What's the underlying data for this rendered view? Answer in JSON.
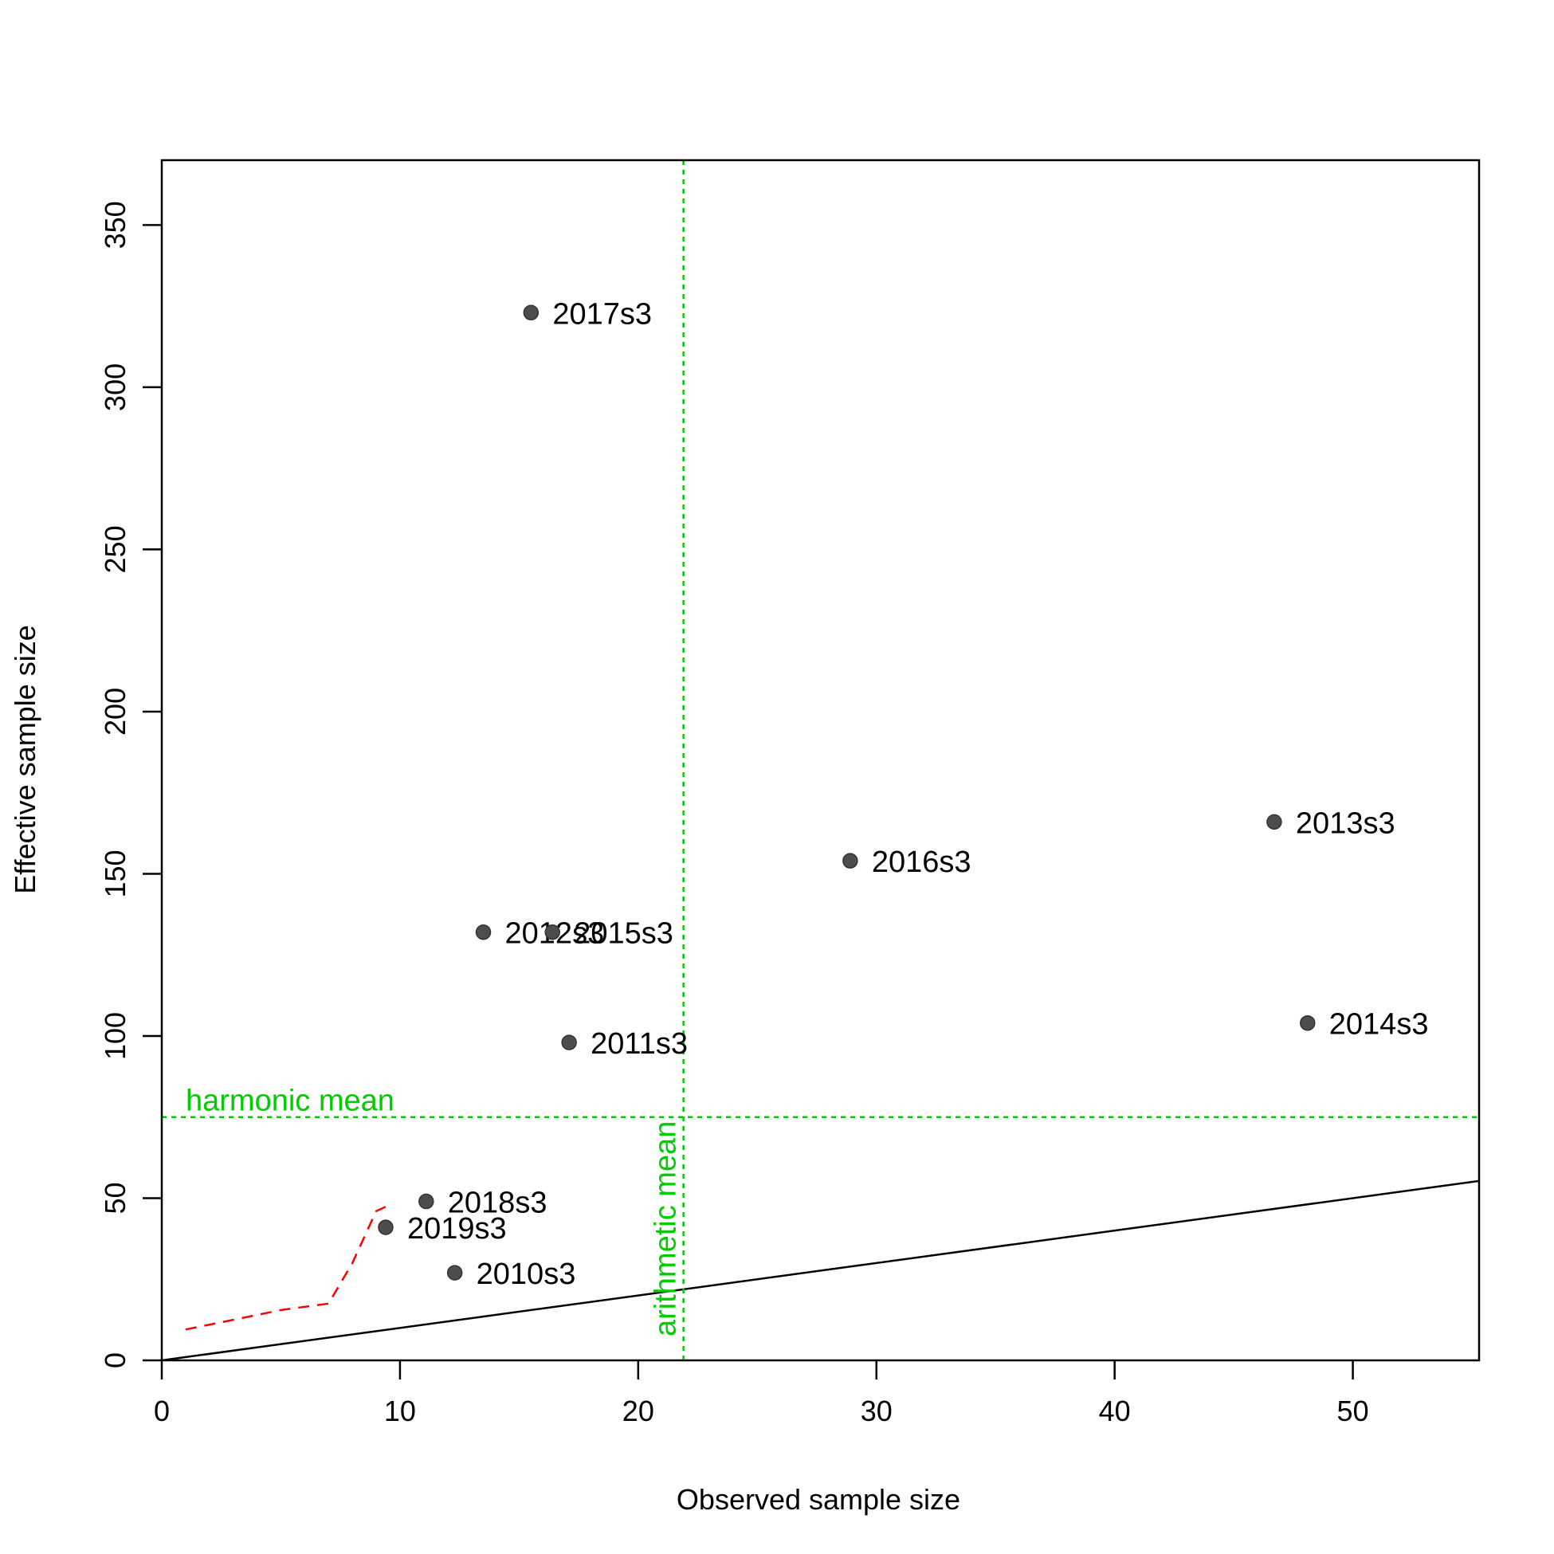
{
  "chart_data": {
    "type": "scatter",
    "xlabel": "Observed sample size",
    "ylabel": "Effective sample size",
    "xlim": [
      0,
      55.3
    ],
    "ylim": [
      0,
      370
    ],
    "x_ticks": [
      0,
      10,
      20,
      30,
      40,
      50
    ],
    "y_ticks": [
      0,
      50,
      100,
      150,
      200,
      250,
      300,
      350
    ],
    "grid": false,
    "points": [
      {
        "label": "2010s3",
        "x": 12.3,
        "y": 27
      },
      {
        "label": "2011s3",
        "x": 17.1,
        "y": 98
      },
      {
        "label": "2012s3",
        "x": 13.5,
        "y": 132
      },
      {
        "label": "2013s3",
        "x": 46.7,
        "y": 166
      },
      {
        "label": "2014s3",
        "x": 48.1,
        "y": 104
      },
      {
        "label": "2015s3",
        "x": 16.4,
        "y": 132
      },
      {
        "label": "2016s3",
        "x": 28.9,
        "y": 154
      },
      {
        "label": "2017s3",
        "x": 15.5,
        "y": 323
      },
      {
        "label": "2018s3",
        "x": 11.1,
        "y": 49
      },
      {
        "label": "2019s3",
        "x": 9.4,
        "y": 41
      }
    ],
    "one_to_one_line": {
      "x": [
        0,
        55.3
      ],
      "y": [
        0,
        55.3
      ],
      "color": "#000000"
    },
    "smoother": {
      "x": [
        1,
        3,
        5,
        7,
        8,
        9,
        9.6
      ],
      "y": [
        9.5,
        12.5,
        15.5,
        17.5,
        30,
        46,
        48
      ],
      "color": "#ff0000",
      "style": "dashed"
    },
    "harmonic_mean": {
      "value": 75,
      "label": "harmonic mean",
      "color": "#00cc00"
    },
    "arithmetic_mean": {
      "value": 21.9,
      "label": "arithmetic mean",
      "color": "#00cc00"
    },
    "point_color": "#4d4d4d"
  }
}
